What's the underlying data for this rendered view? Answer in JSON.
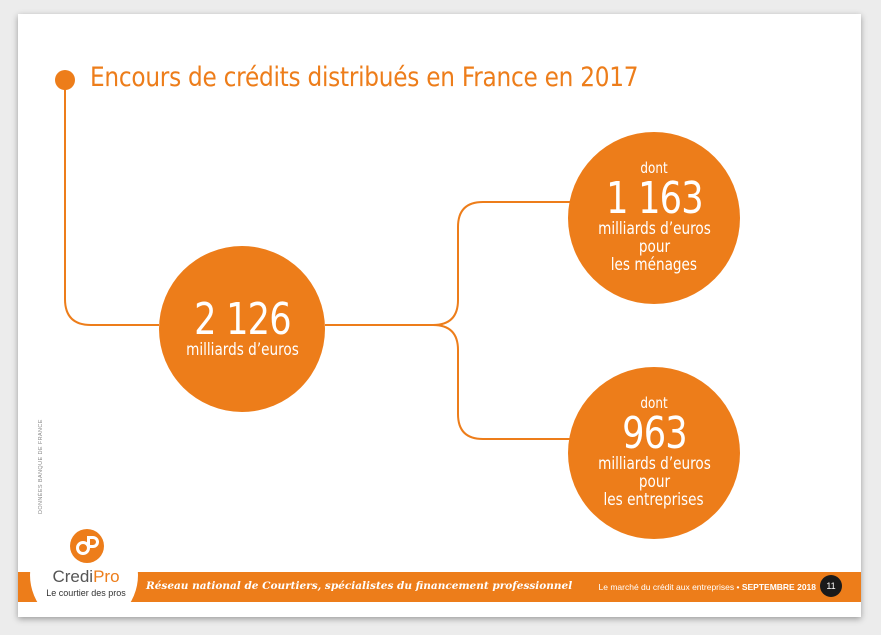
{
  "page": {
    "title": "Encours de crédits distribués en France en 2017",
    "source": "DONNÉES BANQUE DE FRANCE",
    "accent_color": "#ed7d1a"
  },
  "total": {
    "value": "2 126",
    "unit": "milliards d’euros"
  },
  "menages": {
    "prefix": "dont",
    "value": "1 163",
    "unit": "milliards d’euros",
    "line1": "pour",
    "line2": "les ménages"
  },
  "entreprises": {
    "prefix": "dont",
    "value": "963",
    "unit": "milliards d’euros",
    "line1": "pour",
    "line2": "les entreprises"
  },
  "footer": {
    "slogan": "Réseau national de Courtiers, spécialistes du financement professionnel",
    "doc_title": "Le marché du crédit aux entreprises • ",
    "doc_date": "SEPTEMBRE 2018",
    "page_number": "11"
  },
  "logo": {
    "name_part1": "Credi",
    "name_part2": "Pro",
    "tagline": "Le courtier des pros"
  }
}
